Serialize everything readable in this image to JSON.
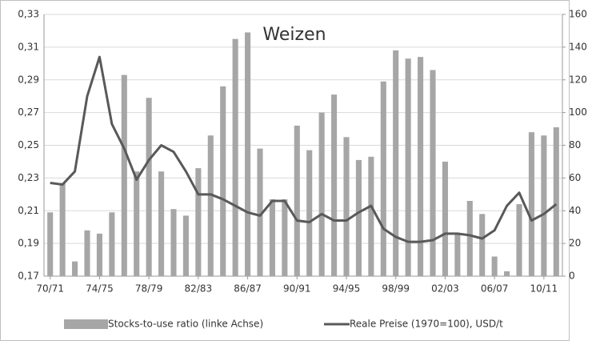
{
  "chart_data": {
    "type": "bar-line",
    "title": "Weizen",
    "categories": [
      "70/71",
      null,
      null,
      null,
      "74/75",
      null,
      null,
      null,
      "78/79",
      null,
      null,
      null,
      "82/83",
      null,
      null,
      null,
      "86/87",
      null,
      null,
      null,
      "90/91",
      null,
      null,
      null,
      "94/95",
      null,
      null,
      null,
      "98/99",
      null,
      null,
      null,
      "02/03",
      null,
      null,
      null,
      "06/07",
      null,
      null,
      null,
      "10/11",
      null
    ],
    "series": [
      {
        "name": "Stocks-to-use ratio (linke Achse)",
        "color": "#a6a6a6",
        "type": "bar",
        "values": [
          0.209,
          0.227,
          0.179,
          0.198,
          0.196,
          0.209,
          0.293,
          0.234,
          0.279,
          0.234,
          0.211,
          0.207,
          0.236,
          0.256,
          0.286,
          0.315,
          0.319,
          0.248,
          0.217,
          0.217,
          0.262,
          0.247,
          0.27,
          0.281,
          0.255,
          0.241,
          0.243,
          0.289,
          0.308,
          0.303,
          0.304,
          0.296,
          0.24,
          0.196,
          0.216,
          0.208,
          0.182,
          0.173,
          0.214,
          0.258,
          0.256,
          0.261
        ]
      },
      {
        "name": "Reale Preise (1970=100), USD/t",
        "color": "#595959",
        "type": "line",
        "axis": "y2",
        "values": [
          57,
          56,
          64,
          110,
          134,
          93,
          78,
          59,
          71,
          80,
          76,
          64,
          50,
          50,
          47,
          43,
          39,
          37,
          46,
          46,
          34,
          33,
          38,
          34,
          34,
          39,
          43,
          29,
          24,
          21,
          21,
          22,
          26,
          26,
          25,
          23,
          28,
          43,
          51,
          34,
          38,
          44
        ]
      }
    ],
    "ylim": [
      0.17,
      0.33
    ],
    "yticks": [
      {
        "value": 0.17,
        "label": "0,17"
      },
      {
        "value": 0.19,
        "label": "0,19"
      },
      {
        "value": 0.21,
        "label": "0,21"
      },
      {
        "value": 0.23,
        "label": "0,23"
      },
      {
        "value": 0.25,
        "label": "0,25"
      },
      {
        "value": 0.27,
        "label": "0,27"
      },
      {
        "value": 0.29,
        "label": "0,29"
      },
      {
        "value": 0.31,
        "label": "0,31"
      },
      {
        "value": 0.33,
        "label": "0,33"
      }
    ],
    "y2lim": [
      0,
      160
    ],
    "y2ticks": [
      0,
      20,
      40,
      60,
      80,
      100,
      120,
      140,
      160
    ],
    "grid": true,
    "legend": "bottom"
  }
}
